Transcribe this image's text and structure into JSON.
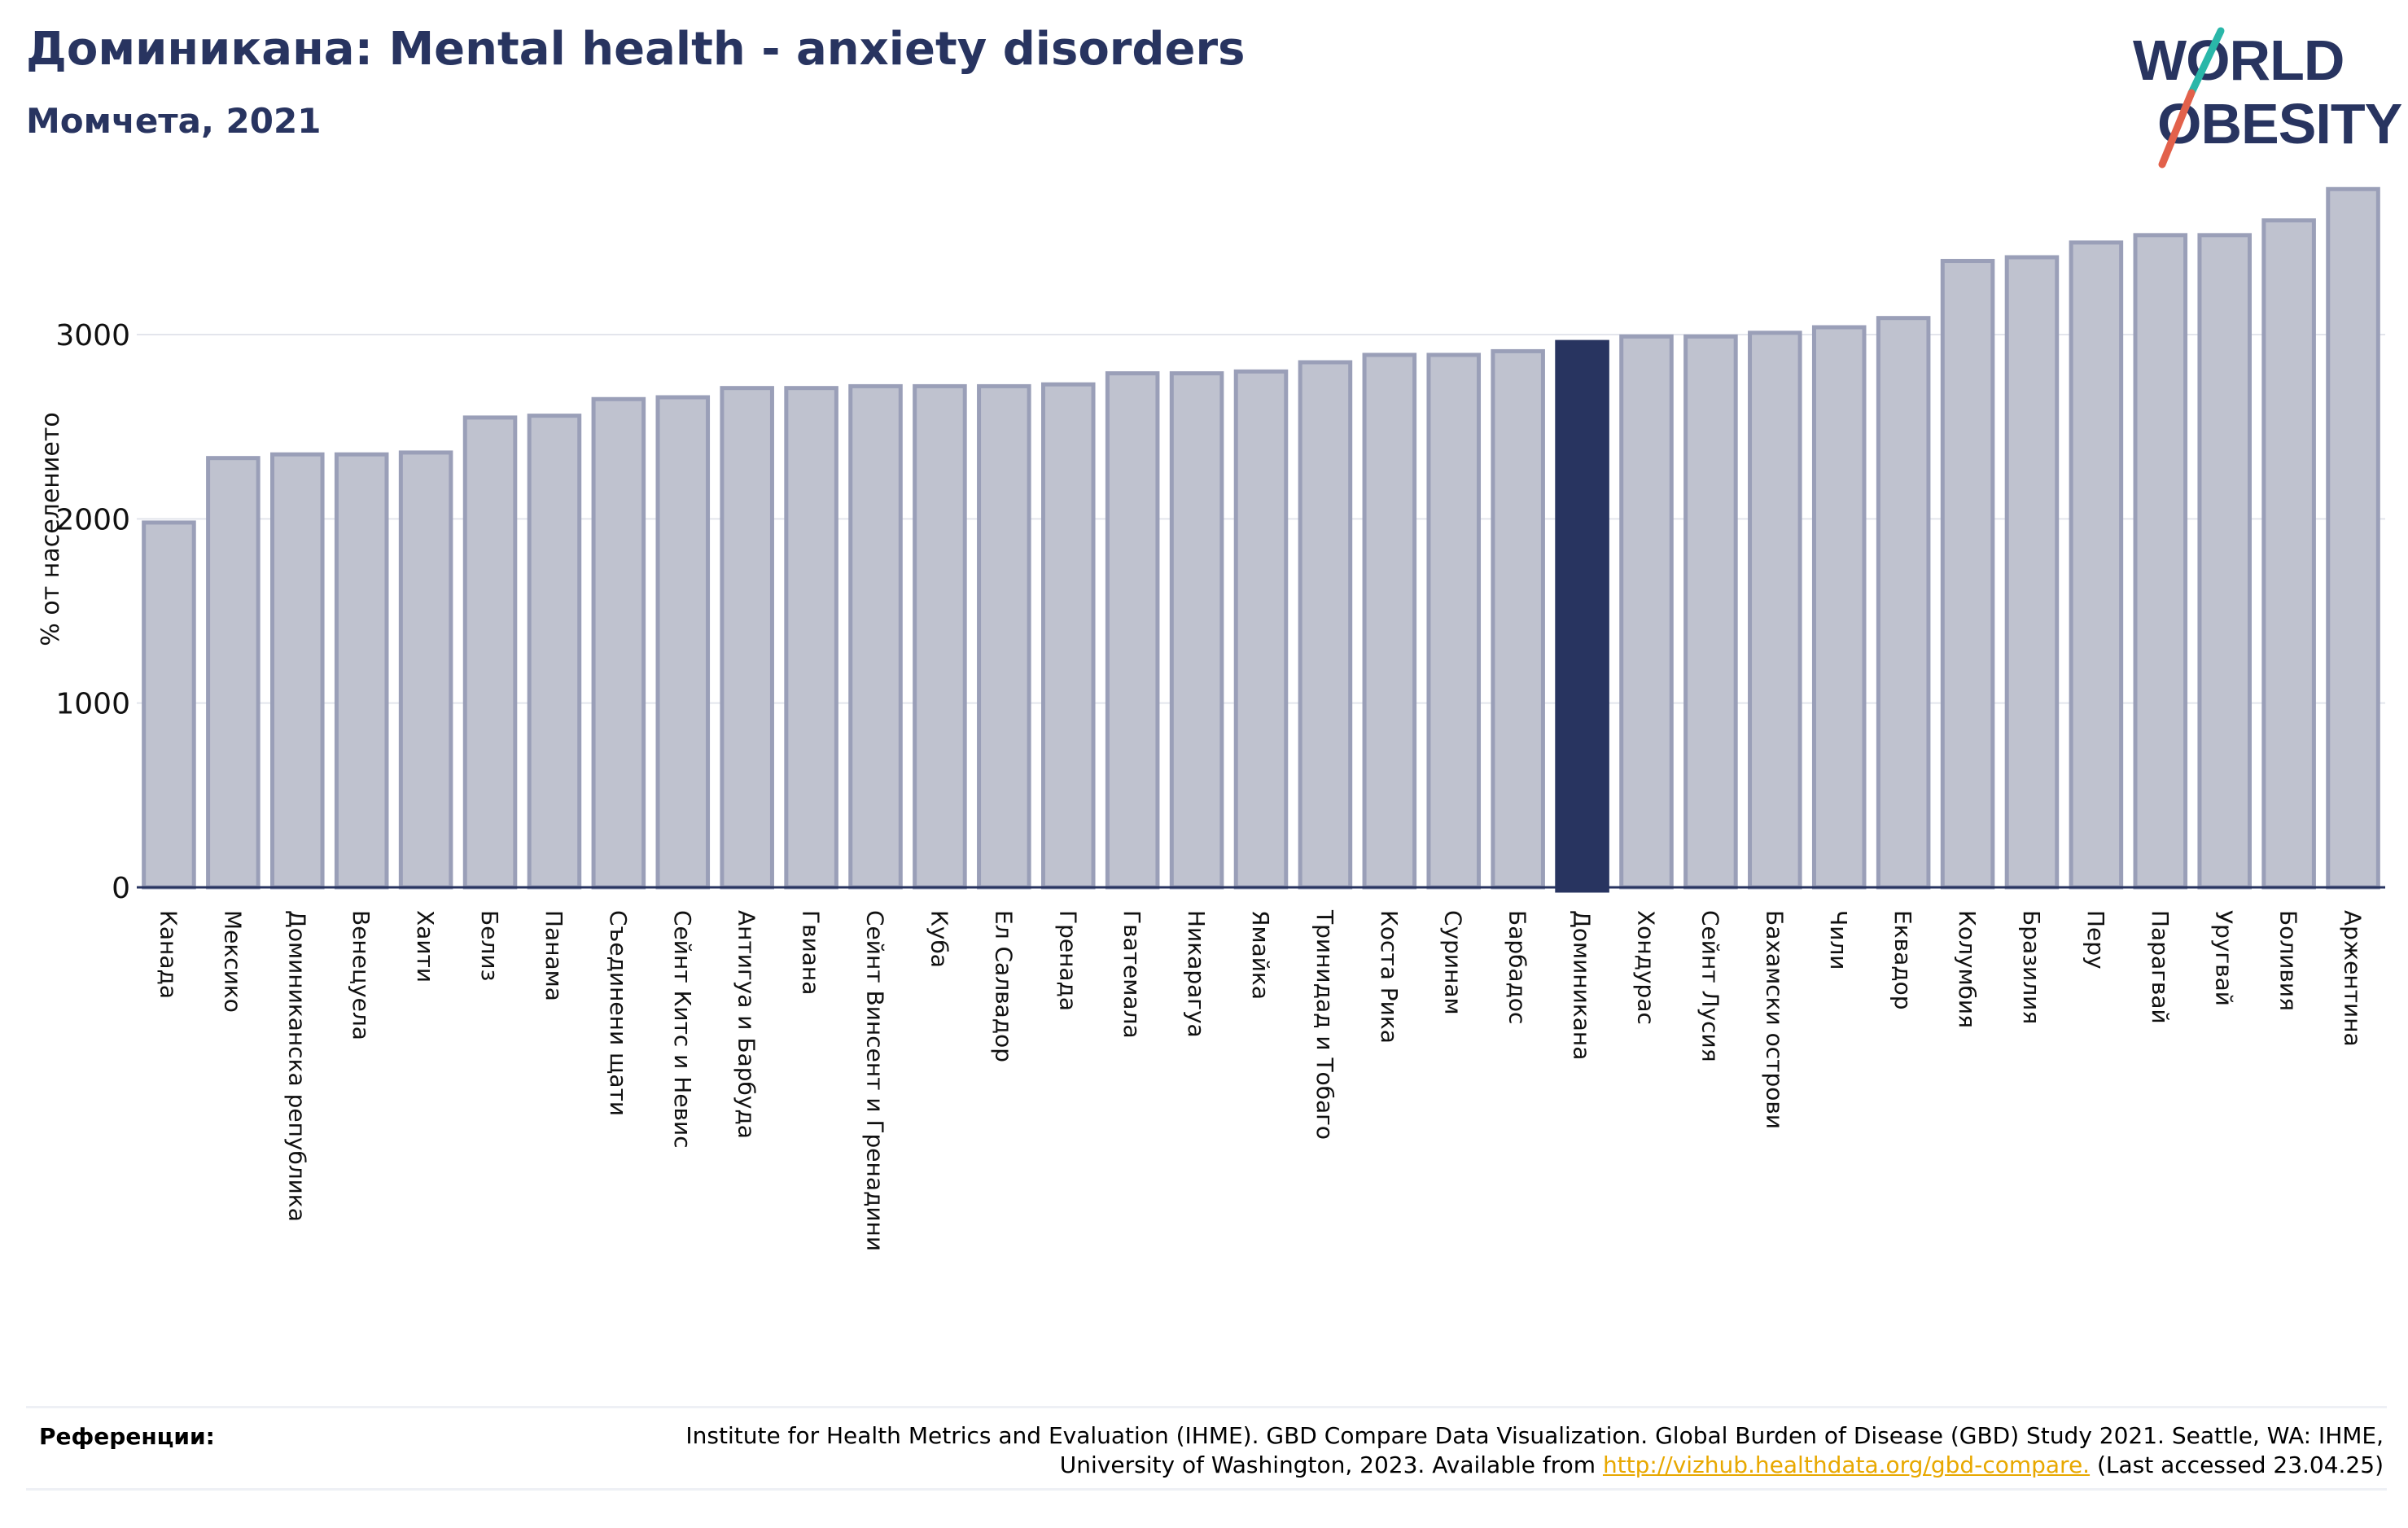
{
  "header": {
    "title": "Доминикана: Mental health - anxiety disorders",
    "subtitle": "Момчета, 2021"
  },
  "logo": {
    "line1": "WORLD",
    "line2": "OBESITY"
  },
  "colors": {
    "navy": "#283460",
    "bar_fill": "#bfc2cf",
    "bar_stroke": "#9a9fb8",
    "highlight": "#283460",
    "logo_teal": "#2ab7a9",
    "logo_red": "#e2614b",
    "link": "#e8a800"
  },
  "chart_data": {
    "type": "bar",
    "ylabel": "% от населението",
    "ylim": [
      0,
      3800
    ],
    "yticks": [
      0,
      1000,
      2000,
      3000
    ],
    "grid": true,
    "highlight": "Доминикана",
    "categories": [
      "Канада",
      "Мексико",
      "Доминиканска република",
      "Венецуела",
      "Хаити",
      "Белиз",
      "Панама",
      "Съединени щати",
      "Сейнт Китс и Невис",
      "Антигуа и Барбуда",
      "Гвиана",
      "Сейнт Винсент и Гренадини",
      "Куба",
      "Ел Салвадор",
      "Гренада",
      "Гватемала",
      "Никарагуа",
      "Ямайка",
      "Тринидад и Тобаго",
      "Коста Рика",
      "Суринам",
      "Барбадос",
      "Доминикана",
      "Хондурас",
      "Сейнт Лусия",
      "Бахамски острови",
      "Чили",
      "Еквадор",
      "Колумбия",
      "Бразилия",
      "Перу",
      "Парагвай",
      "Уругвай",
      "Боливия",
      "Аржентина"
    ],
    "values": [
      1980,
      2330,
      2350,
      2350,
      2360,
      2550,
      2560,
      2650,
      2660,
      2710,
      2710,
      2720,
      2720,
      2720,
      2730,
      2790,
      2790,
      2800,
      2850,
      2890,
      2890,
      2910,
      2960,
      2990,
      2990,
      3010,
      3040,
      3090,
      3400,
      3420,
      3500,
      3540,
      3540,
      3620,
      3790
    ]
  },
  "references": {
    "label": "Референции:",
    "text_before": "Institute for Health Metrics and Evaluation (IHME). GBD Compare Data Visualization. Global Burden of Disease (GBD) Study 2021. Seattle, WA: IHME, University of Washington, 2023. Available from ",
    "link": "http://vizhub.healthdata.org/gbd-compare.",
    "text_after": " (Last accessed 23.04.25)"
  }
}
